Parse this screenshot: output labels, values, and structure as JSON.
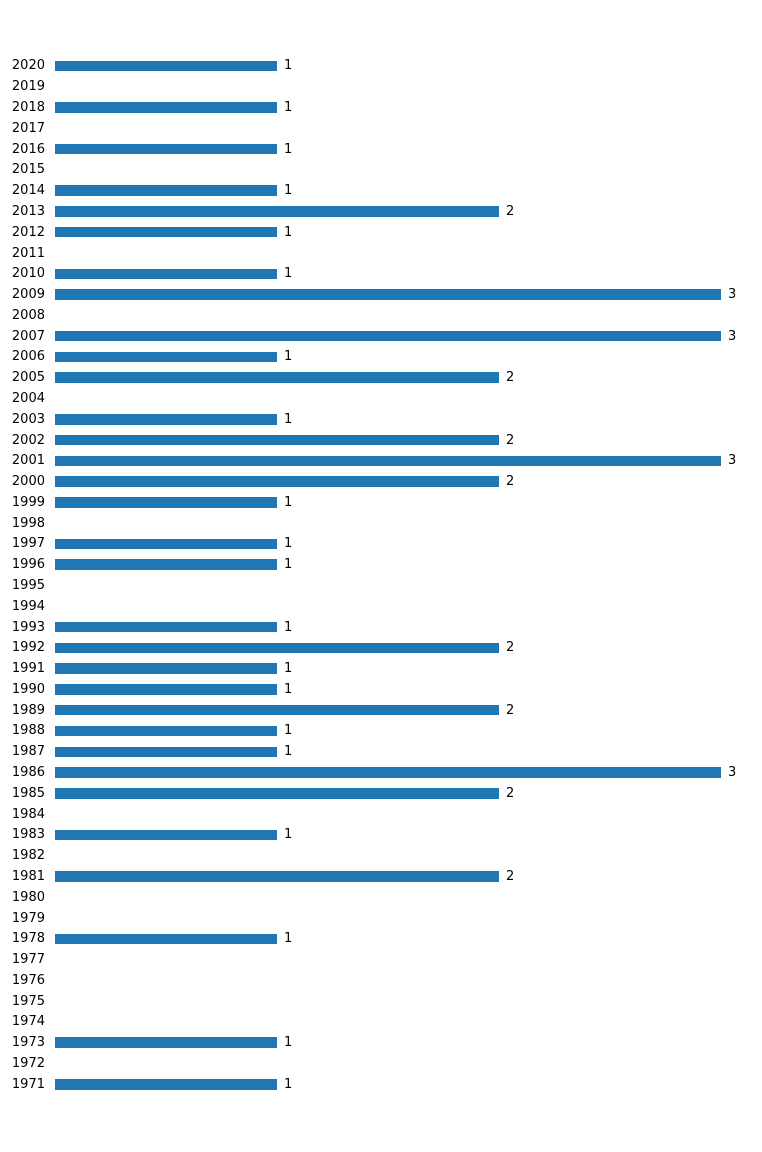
{
  "chart_data": {
    "type": "bar",
    "orientation": "horizontal",
    "title": "",
    "xlabel": "",
    "ylabel": "",
    "xlim": [
      0,
      3.1
    ],
    "grid": false,
    "legend": null,
    "bar_color": "#1f77b4",
    "label_color": "#000000",
    "categories": [
      "2020",
      "2019",
      "2018",
      "2017",
      "2016",
      "2015",
      "2014",
      "2013",
      "2012",
      "2011",
      "2010",
      "2009",
      "2008",
      "2007",
      "2006",
      "2005",
      "2004",
      "2003",
      "2002",
      "2001",
      "2000",
      "1999",
      "1998",
      "1997",
      "1996",
      "1995",
      "1994",
      "1993",
      "1992",
      "1991",
      "1990",
      "1989",
      "1988",
      "1987",
      "1986",
      "1985",
      "1984",
      "1983",
      "1982",
      "1981",
      "1980",
      "1979",
      "1978",
      "1977",
      "1976",
      "1975",
      "1974",
      "1973",
      "1972",
      "1971"
    ],
    "values": [
      1,
      0,
      1,
      0,
      1,
      0,
      1,
      2,
      1,
      0,
      1,
      3,
      0,
      3,
      1,
      2,
      0,
      1,
      2,
      3,
      2,
      1,
      0,
      1,
      1,
      0,
      0,
      1,
      2,
      1,
      1,
      2,
      1,
      1,
      3,
      2,
      0,
      1,
      0,
      2,
      0,
      0,
      1,
      0,
      0,
      0,
      0,
      1,
      0,
      1
    ],
    "value_labels_shown_for_nonzero_only": true
  }
}
